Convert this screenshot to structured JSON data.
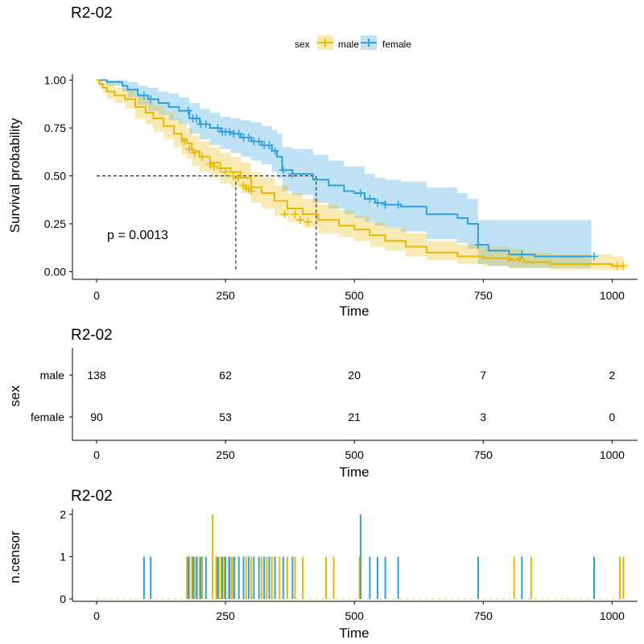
{
  "colors": {
    "male": "#E7B800",
    "female": "#2E9FDF"
  },
  "chart_data": [
    {
      "type": "line",
      "subtype": "kaplan-meier",
      "title": "R2-02",
      "xlabel": "Time",
      "ylabel": "Survival probability",
      "xlim": [
        0,
        1040
      ],
      "ylim": [
        0,
        1.02
      ],
      "xticks": [
        "0",
        "250",
        "500",
        "750",
        "1000"
      ],
      "yticks": [
        "0.00",
        "0.25",
        "0.50",
        "0.75",
        "1.00"
      ],
      "legend": {
        "title": "sex",
        "position": "top",
        "entries": [
          "male",
          "female"
        ]
      },
      "annotation": "p = 0.0013",
      "median": {
        "male": 270,
        "female": 426
      },
      "series": [
        {
          "name": "male",
          "x": [
            0,
            5,
            12,
            20,
            35,
            55,
            75,
            95,
            110,
            130,
            150,
            165,
            175,
            185,
            200,
            220,
            240,
            260,
            280,
            300,
            320,
            345,
            370,
            400,
            430,
            470,
            500,
            530,
            560,
            600,
            640,
            700,
            750,
            800,
            830,
            880,
            960,
            1000,
            1022
          ],
          "y": [
            1.0,
            0.98,
            0.96,
            0.94,
            0.92,
            0.9,
            0.86,
            0.83,
            0.8,
            0.76,
            0.72,
            0.69,
            0.67,
            0.63,
            0.6,
            0.57,
            0.54,
            0.52,
            0.49,
            0.44,
            0.41,
            0.37,
            0.33,
            0.3,
            0.27,
            0.24,
            0.22,
            0.19,
            0.16,
            0.13,
            0.1,
            0.08,
            0.07,
            0.06,
            0.05,
            0.04,
            0.04,
            0.03,
            0.03
          ],
          "lower": [
            1.0,
            0.96,
            0.93,
            0.9,
            0.88,
            0.85,
            0.8,
            0.77,
            0.73,
            0.69,
            0.65,
            0.61,
            0.59,
            0.55,
            0.52,
            0.49,
            0.46,
            0.44,
            0.41,
            0.36,
            0.33,
            0.29,
            0.26,
            0.23,
            0.2,
            0.18,
            0.16,
            0.13,
            0.11,
            0.08,
            0.06,
            0.04,
            0.03,
            0.02,
            0.02,
            0.01,
            0.01,
            0.01,
            0.01
          ],
          "upper": [
            1.0,
            1.0,
            0.99,
            0.98,
            0.96,
            0.95,
            0.92,
            0.89,
            0.87,
            0.83,
            0.8,
            0.77,
            0.75,
            0.71,
            0.68,
            0.65,
            0.62,
            0.6,
            0.57,
            0.52,
            0.49,
            0.45,
            0.41,
            0.38,
            0.35,
            0.32,
            0.29,
            0.26,
            0.23,
            0.2,
            0.16,
            0.14,
            0.13,
            0.12,
            0.1,
            0.09,
            0.09,
            0.08,
            0.08
          ],
          "censor_x": [
            170,
            180,
            190,
            205,
            220,
            228,
            240,
            250,
            265,
            275,
            285,
            290,
            295,
            300,
            365,
            385,
            395,
            410,
            800,
            820,
            1010,
            1022
          ],
          "censor_y": [
            0.68,
            0.64,
            0.62,
            0.6,
            0.56,
            0.55,
            0.54,
            0.52,
            0.5,
            0.49,
            0.45,
            0.44,
            0.43,
            0.42,
            0.3,
            0.3,
            0.27,
            0.26,
            0.07,
            0.07,
            0.03,
            0.03
          ]
        },
        {
          "name": "female",
          "x": [
            0,
            20,
            50,
            60,
            80,
            100,
            120,
            140,
            160,
            180,
            200,
            220,
            240,
            260,
            280,
            300,
            320,
            340,
            350,
            360,
            380,
            420,
            450,
            480,
            500,
            520,
            540,
            560,
            590,
            640,
            700,
            720,
            740,
            760,
            800,
            850,
            960
          ],
          "y": [
            1.0,
            0.99,
            0.97,
            0.95,
            0.92,
            0.9,
            0.88,
            0.86,
            0.84,
            0.8,
            0.77,
            0.75,
            0.73,
            0.72,
            0.7,
            0.68,
            0.66,
            0.63,
            0.6,
            0.53,
            0.51,
            0.48,
            0.45,
            0.42,
            0.41,
            0.38,
            0.36,
            0.35,
            0.34,
            0.3,
            0.28,
            0.25,
            0.14,
            0.11,
            0.09,
            0.08,
            0.08
          ],
          "lower": [
            1.0,
            0.97,
            0.94,
            0.91,
            0.87,
            0.84,
            0.82,
            0.79,
            0.77,
            0.72,
            0.69,
            0.66,
            0.64,
            0.62,
            0.6,
            0.58,
            0.56,
            0.52,
            0.49,
            0.42,
            0.4,
            0.36,
            0.33,
            0.3,
            0.28,
            0.26,
            0.24,
            0.23,
            0.21,
            0.17,
            0.15,
            0.12,
            0.04,
            0.03,
            0.02,
            0.02,
            0.02
          ],
          "upper": [
            1.0,
            1.0,
            1.0,
            0.99,
            0.97,
            0.96,
            0.94,
            0.93,
            0.91,
            0.88,
            0.85,
            0.83,
            0.81,
            0.8,
            0.79,
            0.78,
            0.76,
            0.74,
            0.72,
            0.65,
            0.64,
            0.61,
            0.58,
            0.55,
            0.55,
            0.51,
            0.49,
            0.48,
            0.47,
            0.44,
            0.41,
            0.38,
            0.27,
            0.27,
            0.27,
            0.27,
            0.27
          ]
        }
      ]
    },
    {
      "type": "table",
      "title": "R2-02",
      "xlabel": "Time",
      "ylabel": "sex",
      "xticks": [
        "0",
        "250",
        "500",
        "750",
        "1000"
      ],
      "rows": [
        {
          "label": "male",
          "values": [
            "138",
            "62",
            "20",
            "7",
            "2"
          ]
        },
        {
          "label": "female",
          "values": [
            "90",
            "53",
            "21",
            "3",
            "0"
          ]
        }
      ]
    },
    {
      "type": "bar",
      "title": "R2-02",
      "xlabel": "Time",
      "ylabel": "n.censor",
      "xticks": [
        "0",
        "250",
        "500",
        "750",
        "1000"
      ],
      "yticks": [
        "0",
        "1",
        "2"
      ],
      "ylim": [
        0,
        2.1
      ],
      "series": [
        {
          "name": "male",
          "x": [
            175,
            180,
            185,
            190,
            195,
            200,
            205,
            225,
            232,
            237,
            242,
            248,
            256,
            262,
            268,
            290,
            300,
            320,
            330,
            340,
            355,
            370,
            385,
            400,
            445,
            460,
            510,
            810,
            843,
            1015,
            1022
          ],
          "values": [
            1,
            1,
            1,
            1,
            1,
            1,
            1,
            2,
            1,
            1,
            1,
            1,
            1,
            1,
            1,
            1,
            1,
            1,
            1,
            1,
            1,
            1,
            1,
            1,
            1,
            1,
            1,
            1,
            1,
            1,
            1
          ]
        },
        {
          "name": "female",
          "x": [
            92,
            105,
            178,
            187,
            194,
            202,
            212,
            235,
            244,
            250,
            258,
            266,
            276,
            285,
            295,
            305,
            315,
            325,
            335,
            346,
            362,
            380,
            512,
            530,
            545,
            560,
            585,
            740,
            825,
            965
          ],
          "values": [
            1,
            1,
            1,
            1,
            1,
            1,
            1,
            1,
            1,
            1,
            1,
            1,
            1,
            1,
            1,
            1,
            1,
            1,
            1,
            1,
            1,
            1,
            2,
            1,
            1,
            1,
            1,
            1,
            1,
            1
          ]
        }
      ]
    }
  ]
}
